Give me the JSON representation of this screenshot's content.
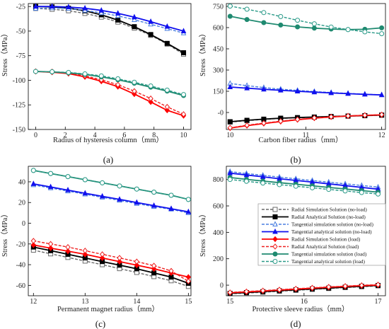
{
  "figure": {
    "legend": {
      "entries": [
        "Radial Simulation Solution (no-load)",
        "Radial Analytical Solution (no-load)",
        "Tangential simulation solution (no-load)",
        "Tangential analytical solution (no-load)",
        "Radial Simulation Solution (load)",
        "Radial Analytical Solution (load)",
        "Tangential simulation solution (load)",
        "Tangential analytical solution (load)"
      ],
      "colors": [
        "#6a6a6a",
        "#000000",
        "#4a7fe0",
        "#1010ee",
        "#ff0000",
        "#ee2020",
        "#1f8a70",
        "#2a9a88"
      ]
    }
  },
  "chart_data": [
    {
      "type": "line",
      "caption": "(a)",
      "xlabel": "Radius of hysteresis column（mm）",
      "ylabel": "Stress（MPa）",
      "xlim": [
        -0.5,
        10.5
      ],
      "ylim": [
        -150,
        -22
      ],
      "xticks": [
        "0",
        "2",
        "4",
        "6",
        "8",
        "10"
      ],
      "yticks": [
        "-25",
        "-50",
        "-75",
        "-100",
        "-125",
        "-150"
      ],
      "x": [
        0,
        1.11,
        2.22,
        3.33,
        4.44,
        5.56,
        6.67,
        7.78,
        8.89,
        10
      ],
      "series": [
        {
          "values": [
            -27,
            -27.8,
            -29.3,
            -32,
            -35.8,
            -40.8,
            -47,
            -54.3,
            -63.2,
            -73.5
          ]
        },
        {
          "values": [
            -25,
            -25.4,
            -26.7,
            -29.4,
            -33.5,
            -38.8,
            -45.5,
            -53.5,
            -62.5,
            -72
          ]
        },
        {
          "values": [
            -27,
            -26.5,
            -27,
            -29,
            -31.5,
            -34.5,
            -38.5,
            -43,
            -47.5,
            -52
          ]
        },
        {
          "values": [
            -25,
            -25,
            -25.6,
            -26.8,
            -29,
            -32,
            -35.8,
            -40.4,
            -45.4,
            -50
          ]
        },
        {
          "values": [
            -91,
            -91.8,
            -93.2,
            -96.5,
            -101,
            -106.5,
            -114,
            -122,
            -130.5,
            -136
          ]
        },
        {
          "values": [
            -91,
            -91.2,
            -92.6,
            -95.4,
            -99.5,
            -104.5,
            -111,
            -118.5,
            -127,
            -134.5
          ]
        },
        {
          "values": [
            -91,
            -91.5,
            -92.5,
            -94,
            -96.5,
            -99.5,
            -103,
            -107,
            -111,
            -115.5
          ]
        },
        {
          "values": [
            -91,
            -91.3,
            -92,
            -93.5,
            -95.5,
            -98.5,
            -102,
            -105.8,
            -110,
            -114.5
          ]
        }
      ]
    },
    {
      "type": "line",
      "caption": "(b)",
      "xlabel": "Carbon fiber radius（mm）",
      "ylabel": "Stress（MPa）",
      "xlim": [
        9.95,
        12.05
      ],
      "ylim": [
        -120,
        770
      ],
      "xticks": [
        "10",
        "11",
        "12"
      ],
      "yticks": [
        "750",
        "600",
        "450",
        "300",
        "150",
        "-0"
      ],
      "x": [
        10,
        10.222,
        10.444,
        10.667,
        10.889,
        11.111,
        11.333,
        11.556,
        11.778,
        12
      ],
      "series": [
        {
          "values": [
            -68,
            -58,
            -49,
            -42,
            -37,
            -33,
            -29,
            -26,
            -23,
            -20
          ]
        },
        {
          "values": [
            -65,
            -55,
            -47,
            -40,
            -36,
            -32,
            -28,
            -25,
            -22,
            -18
          ]
        },
        {
          "values": [
            205,
            190,
            176,
            165,
            156,
            148,
            141,
            135,
            130,
            125
          ]
        },
        {
          "values": [
            180,
            172,
            164,
            157,
            150,
            144,
            138,
            133,
            128,
            124
          ]
        },
        {
          "values": [
            -110,
            -93,
            -78,
            -64,
            -51,
            -40,
            -32,
            -25,
            -20,
            -17
          ]
        },
        {
          "values": [
            -108,
            -90,
            -75,
            -61,
            -49,
            -38,
            -30,
            -24,
            -19,
            -15
          ]
        },
        {
          "values": [
            680,
            657,
            635,
            618,
            605,
            596,
            590,
            586,
            588,
            598
          ]
        },
        {
          "values": [
            752,
            730,
            706,
            678,
            652,
            627,
            604,
            586,
            570,
            557
          ]
        }
      ]
    },
    {
      "type": "line",
      "caption": "(c)",
      "xlabel": "Permanent magnet radius（mm）",
      "ylabel": "Stress（MPa）",
      "xlim": [
        11.9,
        15.05
      ],
      "ylim": [
        -70,
        55
      ],
      "xticks": [
        "12",
        "13",
        "14",
        "15"
      ],
      "yticks": [
        "40",
        "20",
        "0",
        "-20",
        "-40",
        "-60"
      ],
      "x": [
        12,
        12.333,
        12.667,
        13,
        13.333,
        13.667,
        14,
        14.333,
        14.667,
        15
      ],
      "series": [
        {
          "values": [
            -26,
            -29.5,
            -33,
            -36.5,
            -40,
            -43.8,
            -47.5,
            -51.5,
            -55.5,
            -61
          ]
        },
        {
          "values": [
            -23,
            -26.5,
            -30,
            -33.5,
            -37,
            -40.5,
            -44,
            -48,
            -52,
            -58
          ]
        },
        {
          "values": [
            37,
            34,
            31,
            28,
            25,
            22,
            19,
            16,
            13.5,
            10
          ]
        },
        {
          "values": [
            38,
            35,
            32,
            29,
            26,
            23,
            20,
            17,
            14,
            11
          ]
        },
        {
          "values": [
            -21,
            -24,
            -27,
            -30,
            -33.5,
            -37,
            -40.5,
            -44,
            -48,
            -52
          ]
        },
        {
          "values": [
            -17,
            -20,
            -23,
            -26.5,
            -30,
            -33.5,
            -37,
            -41,
            -46,
            -56
          ]
        },
        {
          "values": [
            51,
            48,
            45,
            42,
            39,
            36,
            33,
            30,
            27,
            23
          ]
        },
        {
          "values": [
            51,
            48,
            45,
            42,
            39,
            36,
            33,
            30,
            27,
            23
          ]
        }
      ]
    },
    {
      "type": "line",
      "caption": "(d)",
      "xlabel": "Protective sleeve radius（mm）",
      "ylabel": "Stress（MPa）",
      "xlim": [
        14.95,
        17.1
      ],
      "ylim": [
        -80,
        900
      ],
      "xticks": [
        "15",
        "16",
        "17"
      ],
      "yticks": [
        "800",
        "600",
        "400",
        "200",
        "0"
      ],
      "x": [
        15,
        15.222,
        15.444,
        15.667,
        15.889,
        16.111,
        16.333,
        16.556,
        16.778,
        17
      ],
      "series": [
        {
          "values": [
            -65,
            -60,
            -53,
            -46,
            -39,
            -32,
            -25,
            -18,
            -12,
            -5
          ]
        },
        {
          "values": [
            -62,
            -56,
            -49,
            -42,
            -35,
            -28,
            -22,
            -15,
            -8,
            -2
          ]
        },
        {
          "values": [
            860,
            845,
            832,
            818,
            805,
            792,
            780,
            767,
            755,
            742
          ]
        },
        {
          "values": [
            848,
            834,
            820,
            806,
            793,
            780,
            767,
            754,
            740,
            727
          ]
        },
        {
          "values": [
            -58,
            -51,
            -44,
            -37,
            -30,
            -23,
            -16,
            -10,
            -4,
            1
          ]
        },
        {
          "values": [
            -55,
            -48,
            -41,
            -34,
            -27,
            -20,
            -13,
            -7,
            -1,
            4
          ]
        },
        {
          "values": [
            815,
            801,
            788,
            776,
            764,
            752,
            740,
            728,
            716,
            704
          ]
        },
        {
          "values": [
            800,
            786,
            773,
            761,
            749,
            737,
            725,
            713,
            701,
            690
          ]
        }
      ]
    }
  ]
}
